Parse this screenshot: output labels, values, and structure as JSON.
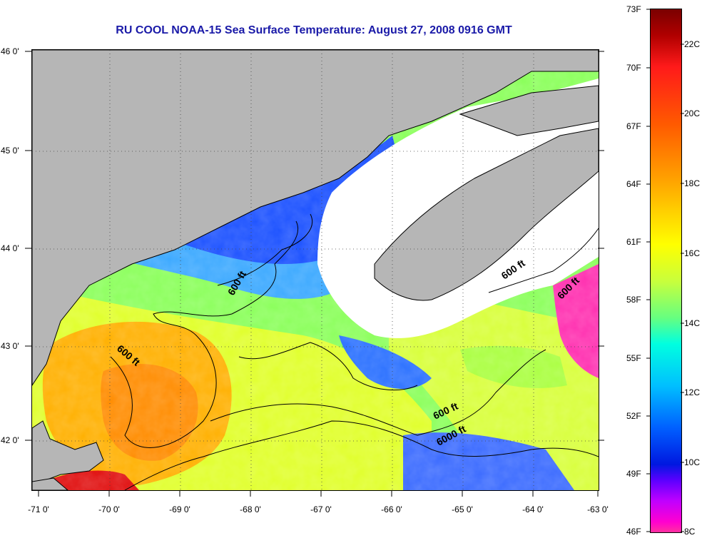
{
  "title": "RU COOL  NOAA-15  Sea Surface Temperature:  August 27, 2008 0916 GMT",
  "lat_labels": [
    "46 0'",
    "45 0'",
    "44 0'",
    "43 0'",
    "42 0'"
  ],
  "lon_labels": [
    "-71 0'",
    "-70 0'",
    "-69 0'",
    "-68 0'",
    "-67 0'",
    "-66 0'",
    "-65 0'",
    "-64 0'",
    "-63 0'"
  ],
  "contour_labels": [
    "600 ft",
    "600 ft",
    "600 ft",
    "600 ft",
    "600 ft",
    "6000 ft"
  ],
  "colorbar": {
    "fahrenheit": [
      "73F",
      "70F",
      "67F",
      "64F",
      "61F",
      "58F",
      "55F",
      "52F",
      "49F",
      "46F"
    ],
    "celsius": [
      "22C",
      "20C",
      "18C",
      "16C",
      "14C",
      "12C",
      "10C",
      "8C"
    ]
  },
  "colors": {
    "land": "#b6b6b6",
    "cloud": "#ffffff",
    "title": "#1a1aa8"
  }
}
